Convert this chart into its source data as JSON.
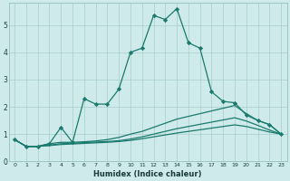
{
  "xlabel": "Humidex (Indice chaleur)",
  "background_color": "#ceeaea",
  "grid_color": "#aacccc",
  "line_color": "#1a7a6e",
  "xlim": [
    -0.5,
    23.5
  ],
  "ylim": [
    0,
    5.8
  ],
  "xtick_labels": [
    "0",
    "1",
    "2",
    "3",
    "4",
    "5",
    "6",
    "7",
    "8",
    "9",
    "10",
    "11",
    "12",
    "13",
    "14",
    "15",
    "16",
    "17",
    "18",
    "19",
    "20",
    "21",
    "22",
    "23"
  ],
  "yticks": [
    0,
    1,
    2,
    3,
    4,
    5
  ],
  "line1_x": [
    0,
    1,
    2,
    3,
    4,
    5,
    6,
    7,
    8,
    9,
    10,
    11,
    12,
    13,
    14,
    15,
    16,
    17,
    18,
    19,
    20,
    21,
    22,
    23
  ],
  "line1_y": [
    0.8,
    0.55,
    0.55,
    0.65,
    1.25,
    0.7,
    2.3,
    2.1,
    2.1,
    2.65,
    4.0,
    4.15,
    5.35,
    5.2,
    5.6,
    4.35,
    4.15,
    2.55,
    2.2,
    2.15,
    1.7,
    1.5,
    1.35,
    1.0
  ],
  "line2_x": [
    0,
    1,
    2,
    3,
    4,
    5,
    6,
    7,
    8,
    9,
    10,
    11,
    12,
    13,
    14,
    15,
    16,
    17,
    18,
    19,
    20,
    21,
    22,
    23
  ],
  "line2_y": [
    0.8,
    0.55,
    0.55,
    0.65,
    0.7,
    0.7,
    0.72,
    0.75,
    0.8,
    0.88,
    1.0,
    1.1,
    1.25,
    1.4,
    1.55,
    1.65,
    1.75,
    1.85,
    1.95,
    2.05,
    1.75,
    1.5,
    1.35,
    1.0
  ],
  "line3_x": [
    0,
    1,
    2,
    3,
    4,
    5,
    6,
    7,
    8,
    9,
    10,
    11,
    12,
    13,
    14,
    15,
    16,
    17,
    18,
    19,
    20,
    21,
    22,
    23
  ],
  "line3_y": [
    0.8,
    0.55,
    0.55,
    0.6,
    0.65,
    0.67,
    0.69,
    0.71,
    0.73,
    0.76,
    0.82,
    0.9,
    1.0,
    1.1,
    1.2,
    1.28,
    1.36,
    1.44,
    1.52,
    1.6,
    1.48,
    1.32,
    1.15,
    1.0
  ],
  "line4_x": [
    0,
    1,
    2,
    3,
    4,
    5,
    6,
    7,
    8,
    9,
    10,
    11,
    12,
    13,
    14,
    15,
    16,
    17,
    18,
    19,
    20,
    21,
    22,
    23
  ],
  "line4_y": [
    0.8,
    0.55,
    0.55,
    0.58,
    0.62,
    0.64,
    0.66,
    0.68,
    0.7,
    0.73,
    0.77,
    0.83,
    0.9,
    0.97,
    1.04,
    1.1,
    1.16,
    1.22,
    1.28,
    1.34,
    1.28,
    1.18,
    1.08,
    1.0
  ]
}
